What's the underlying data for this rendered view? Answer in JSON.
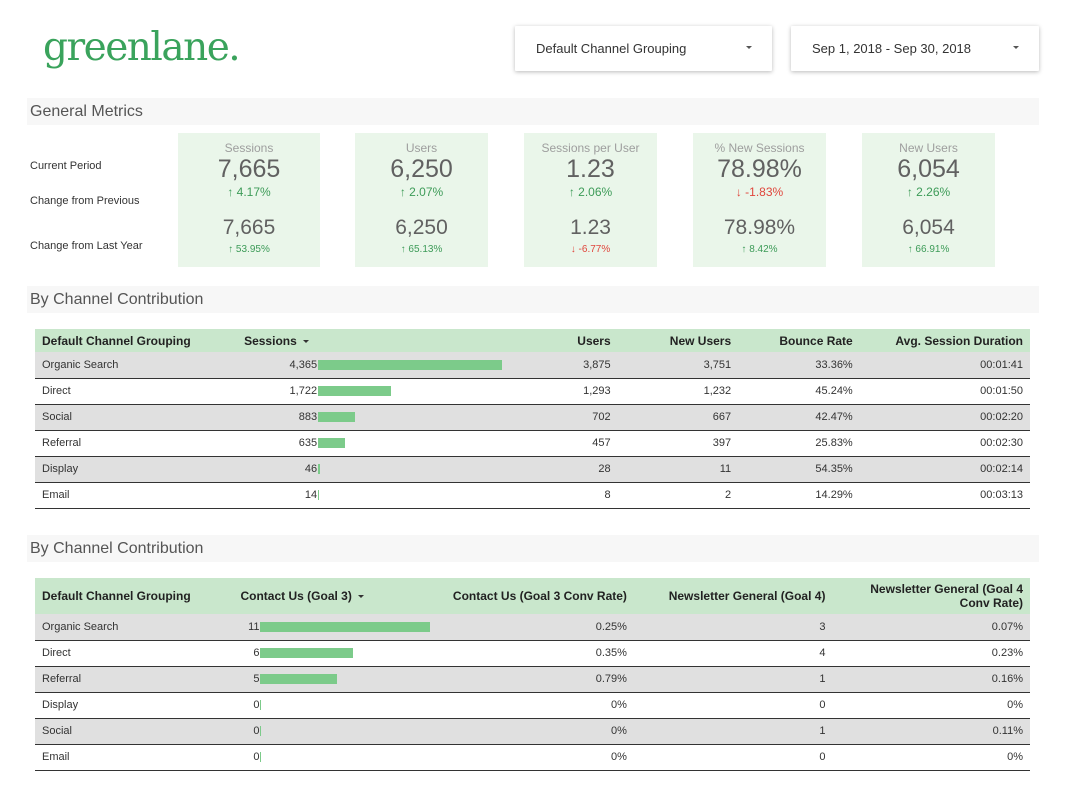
{
  "brand": {
    "logo_text": "greenlane.",
    "accent": "#3aa35c"
  },
  "filters": {
    "channel": {
      "value": "Default Channel Grouping"
    },
    "date": {
      "value": "Sep 1, 2018 - Sep 30, 2018"
    }
  },
  "general": {
    "title": "General Metrics",
    "row_labels": [
      "Current Period",
      "Change from Previous",
      "Change from Last Year"
    ],
    "metrics": [
      {
        "title": "Sessions",
        "value": "7,665",
        "change": "4.17%",
        "change_dir": "up",
        "value2": "7,665",
        "change2": "53.95%",
        "change2_dir": "up"
      },
      {
        "title": "Users",
        "value": "6,250",
        "change": "2.07%",
        "change_dir": "up",
        "value2": "6,250",
        "change2": "65.13%",
        "change2_dir": "up"
      },
      {
        "title": "Sessions per User",
        "value": "1.23",
        "change": "2.06%",
        "change_dir": "up",
        "value2": "1.23",
        "change2": "-6.77%",
        "change2_dir": "down"
      },
      {
        "title": "% New Sessions",
        "value": "78.98%",
        "change": "-1.83%",
        "change_dir": "down",
        "value2": "78.98%",
        "change2": "8.42%",
        "change2_dir": "up"
      },
      {
        "title": "New Users",
        "value": "6,054",
        "change": "2.26%",
        "change_dir": "up",
        "value2": "6,054",
        "change2": "66.91%",
        "change2_dir": "up"
      }
    ]
  },
  "table1": {
    "title": "By Channel Contribution",
    "headers": {
      "channel": "Default Channel Grouping",
      "sessions": "Sessions",
      "users": "Users",
      "new_users": "New Users",
      "bounce": "Bounce Rate",
      "duration": "Avg. Session Duration"
    },
    "bar_max": 4365,
    "rows": [
      {
        "channel": "Organic Search",
        "sessions": "4,365",
        "sessions_value": 4365,
        "users": "3,875",
        "new_users": "3,751",
        "bounce": "33.36%",
        "duration": "00:01:41"
      },
      {
        "channel": "Direct",
        "sessions": "1,722",
        "sessions_value": 1722,
        "users": "1,293",
        "new_users": "1,232",
        "bounce": "45.24%",
        "duration": "00:01:50"
      },
      {
        "channel": "Social",
        "sessions": "883",
        "sessions_value": 883,
        "users": "702",
        "new_users": "667",
        "bounce": "42.47%",
        "duration": "00:02:20"
      },
      {
        "channel": "Referral",
        "sessions": "635",
        "sessions_value": 635,
        "users": "457",
        "new_users": "397",
        "bounce": "25.83%",
        "duration": "00:02:30"
      },
      {
        "channel": "Display",
        "sessions": "46",
        "sessions_value": 46,
        "users": "28",
        "new_users": "11",
        "bounce": "54.35%",
        "duration": "00:02:14"
      },
      {
        "channel": "Email",
        "sessions": "14",
        "sessions_value": 14,
        "users": "8",
        "new_users": "2",
        "bounce": "14.29%",
        "duration": "00:03:13"
      }
    ]
  },
  "table2": {
    "title": "By Channel Contribution",
    "headers": {
      "channel": "Default Channel Grouping",
      "goal3": "Contact Us (Goal 3)",
      "goal3_rate": "Contact Us (Goal 3 Conv Rate)",
      "goal4": "Newsletter General (Goal 4)",
      "goal4_rate": "Newsletter General (Goal 4 Conv Rate)"
    },
    "bar_max": 11,
    "rows": [
      {
        "channel": "Organic Search",
        "goal3": "11",
        "goal3_value": 11,
        "goal3_rate": "0.25%",
        "goal4": "3",
        "goal4_rate": "0.07%"
      },
      {
        "channel": "Direct",
        "goal3": "6",
        "goal3_value": 6,
        "goal3_rate": "0.35%",
        "goal4": "4",
        "goal4_rate": "0.23%"
      },
      {
        "channel": "Referral",
        "goal3": "5",
        "goal3_value": 5,
        "goal3_rate": "0.79%",
        "goal4": "1",
        "goal4_rate": "0.16%"
      },
      {
        "channel": "Display",
        "goal3": "0",
        "goal3_value": 0,
        "goal3_rate": "0%",
        "goal4": "0",
        "goal4_rate": "0%"
      },
      {
        "channel": "Social",
        "goal3": "0",
        "goal3_value": 0,
        "goal3_rate": "0%",
        "goal4": "1",
        "goal4_rate": "0.11%"
      },
      {
        "channel": "Email",
        "goal3": "0",
        "goal3_value": 0,
        "goal3_rate": "0%",
        "goal4": "0",
        "goal4_rate": "0%"
      }
    ]
  }
}
